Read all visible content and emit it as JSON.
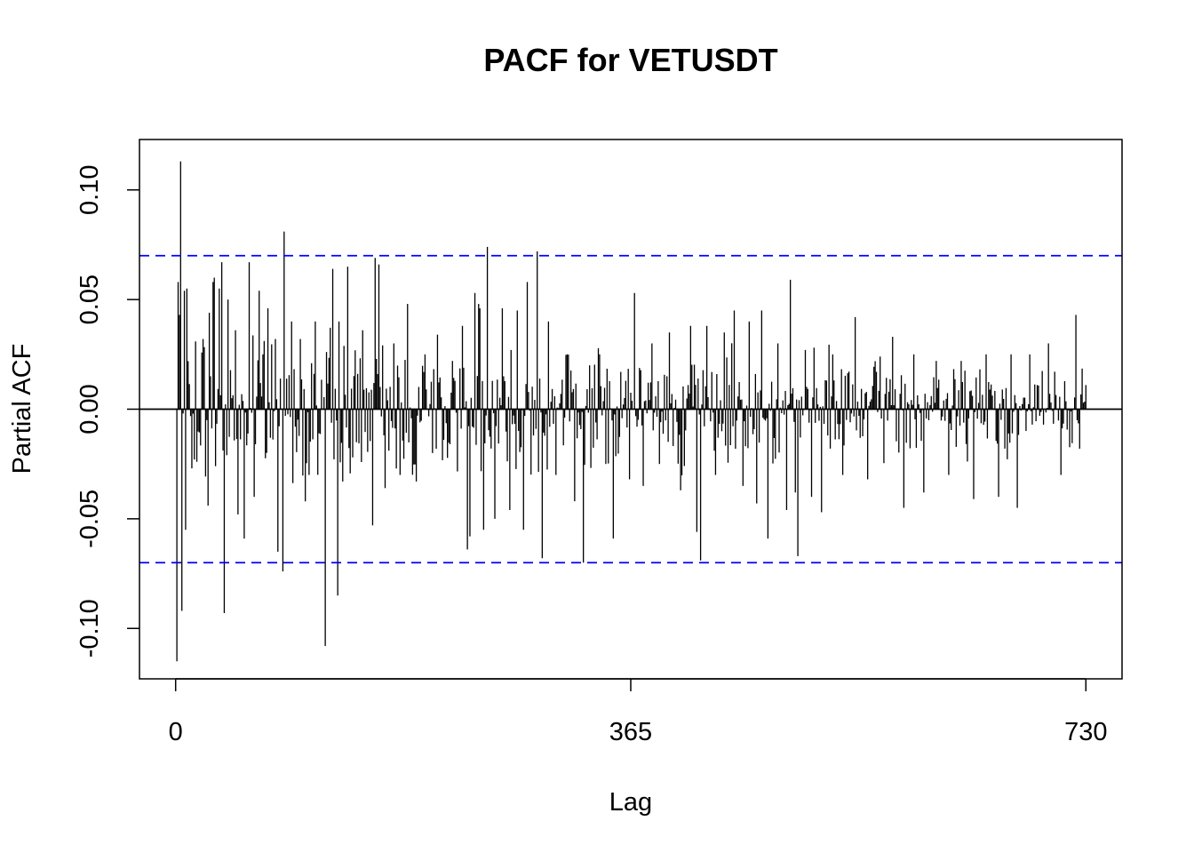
{
  "chart_data": {
    "type": "bar",
    "title": "PACF for VETUSDT",
    "xlabel": "Lag",
    "ylabel": "Partial ACF",
    "xlim": [
      -29,
      759
    ],
    "ylim": [
      -0.123,
      0.123
    ],
    "x_ticks": [
      0,
      365,
      730
    ],
    "x_tick_labels": [
      "0",
      "365",
      "730"
    ],
    "y_ticks": [
      -0.1,
      -0.05,
      0.0,
      0.05,
      0.1
    ],
    "y_tick_labels": [
      "-0.10",
      "-0.05",
      "0.00",
      "0.05",
      "0.10"
    ],
    "confidence_bound": 0.07,
    "grid": false,
    "legend": "none",
    "colors": {
      "bars": "#000000",
      "bounds": "#0000ff",
      "zero_line": "#000000"
    },
    "lags": {
      "start": 1,
      "end": 730
    },
    "highlighted_values": [
      {
        "lag": 1,
        "value": -0.115
      },
      {
        "lag": 2,
        "value": 0.058
      },
      {
        "lag": 3,
        "value": 0.043
      },
      {
        "lag": 4,
        "value": 0.113
      },
      {
        "lag": 5,
        "value": -0.092
      },
      {
        "lag": 7,
        "value": 0.054
      },
      {
        "lag": 8,
        "value": -0.055
      },
      {
        "lag": 9,
        "value": 0.055
      },
      {
        "lag": 13,
        "value": -0.027
      },
      {
        "lag": 17,
        "value": -0.024
      },
      {
        "lag": 22,
        "value": 0.032
      },
      {
        "lag": 26,
        "value": -0.044
      },
      {
        "lag": 27,
        "value": 0.044
      },
      {
        "lag": 30,
        "value": 0.058
      },
      {
        "lag": 31,
        "value": 0.06
      },
      {
        "lag": 32,
        "value": -0.026
      },
      {
        "lag": 35,
        "value": 0.055
      },
      {
        "lag": 37,
        "value": 0.067
      },
      {
        "lag": 39,
        "value": -0.093
      },
      {
        "lag": 42,
        "value": 0.05
      },
      {
        "lag": 48,
        "value": 0.036
      },
      {
        "lag": 50,
        "value": -0.048
      },
      {
        "lag": 55,
        "value": -0.059
      },
      {
        "lag": 59,
        "value": 0.067
      },
      {
        "lag": 63,
        "value": -0.04
      },
      {
        "lag": 67,
        "value": 0.054
      },
      {
        "lag": 70,
        "value": 0.025
      },
      {
        "lag": 74,
        "value": 0.046
      },
      {
        "lag": 80,
        "value": 0.032
      },
      {
        "lag": 82,
        "value": -0.065
      },
      {
        "lag": 86,
        "value": -0.074
      },
      {
        "lag": 87,
        "value": 0.081
      },
      {
        "lag": 93,
        "value": 0.04
      },
      {
        "lag": 100,
        "value": 0.032
      },
      {
        "lag": 107,
        "value": -0.03
      },
      {
        "lag": 112,
        "value": 0.04
      },
      {
        "lag": 115,
        "value": -0.011
      },
      {
        "lag": 120,
        "value": -0.108
      },
      {
        "lag": 126,
        "value": 0.064
      },
      {
        "lag": 130,
        "value": -0.085
      },
      {
        "lag": 131,
        "value": 0.04
      },
      {
        "lag": 134,
        "value": -0.033
      },
      {
        "lag": 138,
        "value": 0.065
      },
      {
        "lag": 142,
        "value": -0.022
      },
      {
        "lag": 150,
        "value": 0.036
      },
      {
        "lag": 158,
        "value": -0.053
      },
      {
        "lag": 160,
        "value": 0.069
      },
      {
        "lag": 163,
        "value": 0.066
      },
      {
        "lag": 168,
        "value": -0.036
      },
      {
        "lag": 175,
        "value": 0.03
      },
      {
        "lag": 180,
        "value": -0.03
      },
      {
        "lag": 186,
        "value": 0.048
      },
      {
        "lag": 193,
        "value": -0.033
      },
      {
        "lag": 200,
        "value": 0.025
      },
      {
        "lag": 206,
        "value": -0.02
      },
      {
        "lag": 210,
        "value": 0.034
      },
      {
        "lag": 215,
        "value": -0.014
      },
      {
        "lag": 222,
        "value": 0.022
      },
      {
        "lag": 230,
        "value": 0.038
      },
      {
        "lag": 234,
        "value": -0.064
      },
      {
        "lag": 236,
        "value": -0.058
      },
      {
        "lag": 240,
        "value": 0.053
      },
      {
        "lag": 243,
        "value": 0.048
      },
      {
        "lag": 244,
        "value": 0.046
      },
      {
        "lag": 247,
        "value": -0.055
      },
      {
        "lag": 250,
        "value": 0.074
      },
      {
        "lag": 256,
        "value": -0.05
      },
      {
        "lag": 262,
        "value": 0.046
      },
      {
        "lag": 268,
        "value": -0.046
      },
      {
        "lag": 274,
        "value": 0.045
      },
      {
        "lag": 279,
        "value": -0.055
      },
      {
        "lag": 282,
        "value": 0.058
      },
      {
        "lag": 287,
        "value": -0.012
      },
      {
        "lag": 290,
        "value": 0.072
      },
      {
        "lag": 294,
        "value": -0.068
      },
      {
        "lag": 299,
        "value": 0.04
      },
      {
        "lag": 305,
        "value": -0.03
      },
      {
        "lag": 314,
        "value": 0.025
      },
      {
        "lag": 320,
        "value": -0.042
      },
      {
        "lag": 327,
        "value": -0.07
      },
      {
        "lag": 332,
        "value": 0.02
      },
      {
        "lag": 340,
        "value": 0.025
      },
      {
        "lag": 345,
        "value": -0.025
      },
      {
        "lag": 351,
        "value": -0.059
      },
      {
        "lag": 357,
        "value": 0.017
      },
      {
        "lag": 364,
        "value": -0.032
      },
      {
        "lag": 368,
        "value": 0.053
      },
      {
        "lag": 375,
        "value": -0.035
      },
      {
        "lag": 382,
        "value": 0.03
      },
      {
        "lag": 388,
        "value": -0.025
      },
      {
        "lag": 396,
        "value": 0.035
      },
      {
        "lag": 405,
        "value": -0.037
      },
      {
        "lag": 413,
        "value": 0.038
      },
      {
        "lag": 418,
        "value": -0.056
      },
      {
        "lag": 421,
        "value": -0.069
      },
      {
        "lag": 426,
        "value": 0.038
      },
      {
        "lag": 433,
        "value": -0.03
      },
      {
        "lag": 440,
        "value": 0.035
      },
      {
        "lag": 448,
        "value": 0.045
      },
      {
        "lag": 455,
        "value": -0.035
      },
      {
        "lag": 460,
        "value": 0.04
      },
      {
        "lag": 466,
        "value": -0.043
      },
      {
        "lag": 470,
        "value": 0.045
      },
      {
        "lag": 475,
        "value": -0.059
      },
      {
        "lag": 483,
        "value": 0.03
      },
      {
        "lag": 490,
        "value": -0.046
      },
      {
        "lag": 493,
        "value": 0.059
      },
      {
        "lag": 497,
        "value": -0.038
      },
      {
        "lag": 499,
        "value": -0.067
      },
      {
        "lag": 505,
        "value": 0.027
      },
      {
        "lag": 510,
        "value": -0.04
      },
      {
        "lag": 518,
        "value": -0.047
      },
      {
        "lag": 527,
        "value": 0.025
      },
      {
        "lag": 535,
        "value": -0.03
      },
      {
        "lag": 545,
        "value": 0.042
      },
      {
        "lag": 555,
        "value": -0.032
      },
      {
        "lag": 565,
        "value": 0.024
      },
      {
        "lag": 575,
        "value": 0.033
      },
      {
        "lag": 584,
        "value": -0.045
      },
      {
        "lag": 592,
        "value": 0.025
      },
      {
        "lag": 600,
        "value": -0.038
      },
      {
        "lag": 610,
        "value": 0.022
      },
      {
        "lag": 620,
        "value": -0.03
      },
      {
        "lag": 630,
        "value": 0.022
      },
      {
        "lag": 640,
        "value": -0.041
      },
      {
        "lag": 650,
        "value": 0.025
      },
      {
        "lag": 660,
        "value": -0.04
      },
      {
        "lag": 670,
        "value": 0.025
      },
      {
        "lag": 675,
        "value": -0.045
      },
      {
        "lag": 685,
        "value": 0.025
      },
      {
        "lag": 700,
        "value": 0.03
      },
      {
        "lag": 710,
        "value": -0.03
      },
      {
        "lag": 722,
        "value": 0.043
      },
      {
        "lag": 730,
        "value": 0.011
      }
    ],
    "background_series": {
      "amplitude_start": 0.03,
      "amplitude_end": 0.016,
      "seed": 7
    }
  }
}
